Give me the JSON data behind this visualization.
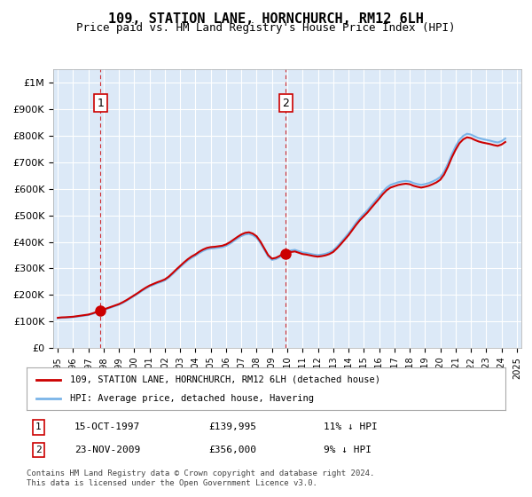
{
  "title": "109, STATION LANE, HORNCHURCH, RM12 6LH",
  "subtitle": "Price paid vs. HM Land Registry's House Price Index (HPI)",
  "background_color": "#dce9f7",
  "plot_bg_color": "#dce9f7",
  "ylabel_color": "#000000",
  "grid_color": "#ffffff",
  "hpi_color": "#7ab4e8",
  "price_color": "#cc0000",
  "ylim": [
    0,
    1050000
  ],
  "yticks": [
    0,
    100000,
    200000,
    300000,
    400000,
    500000,
    600000,
    700000,
    800000,
    900000,
    1000000
  ],
  "ytick_labels": [
    "£0",
    "£100K",
    "£200K",
    "£300K",
    "£400K",
    "£500K",
    "£600K",
    "£700K",
    "£800K",
    "£900K",
    "£1M"
  ],
  "x_start_year": 1995,
  "x_end_year": 2025,
  "xtick_years": [
    1995,
    1996,
    1997,
    1998,
    1999,
    2000,
    2001,
    2002,
    2003,
    2004,
    2005,
    2006,
    2007,
    2008,
    2009,
    2010,
    2011,
    2012,
    2013,
    2014,
    2015,
    2016,
    2017,
    2018,
    2019,
    2020,
    2021,
    2022,
    2023,
    2024,
    2025
  ],
  "hpi_years": [
    1995.0,
    1995.25,
    1995.5,
    1995.75,
    1996.0,
    1996.25,
    1996.5,
    1996.75,
    1997.0,
    1997.25,
    1997.5,
    1997.75,
    1998.0,
    1998.25,
    1998.5,
    1998.75,
    1999.0,
    1999.25,
    1999.5,
    1999.75,
    2000.0,
    2000.25,
    2000.5,
    2000.75,
    2001.0,
    2001.25,
    2001.5,
    2001.75,
    2002.0,
    2002.25,
    2002.5,
    2002.75,
    2003.0,
    2003.25,
    2003.5,
    2003.75,
    2004.0,
    2004.25,
    2004.5,
    2004.75,
    2005.0,
    2005.25,
    2005.5,
    2005.75,
    2006.0,
    2006.25,
    2006.5,
    2006.75,
    2007.0,
    2007.25,
    2007.5,
    2007.75,
    2008.0,
    2008.25,
    2008.5,
    2008.75,
    2009.0,
    2009.25,
    2009.5,
    2009.75,
    2010.0,
    2010.25,
    2010.5,
    2010.75,
    2011.0,
    2011.25,
    2011.5,
    2011.75,
    2012.0,
    2012.25,
    2012.5,
    2012.75,
    2013.0,
    2013.25,
    2013.5,
    2013.75,
    2014.0,
    2014.25,
    2014.5,
    2014.75,
    2015.0,
    2015.25,
    2015.5,
    2015.75,
    2016.0,
    2016.25,
    2016.5,
    2016.75,
    2017.0,
    2017.25,
    2017.5,
    2017.75,
    2018.0,
    2018.25,
    2018.5,
    2018.75,
    2019.0,
    2019.25,
    2019.5,
    2019.75,
    2020.0,
    2020.25,
    2020.5,
    2020.75,
    2021.0,
    2021.25,
    2021.5,
    2021.75,
    2022.0,
    2022.25,
    2022.5,
    2022.75,
    2023.0,
    2023.25,
    2023.5,
    2023.75,
    2024.0,
    2024.25
  ],
  "hpi_values": [
    112000,
    113500,
    114000,
    115000,
    116000,
    118000,
    120000,
    122000,
    124000,
    128000,
    133000,
    138000,
    143000,
    148000,
    153000,
    158000,
    163000,
    170000,
    178000,
    187000,
    196000,
    205000,
    215000,
    224000,
    232000,
    238000,
    244000,
    249000,
    255000,
    265000,
    278000,
    292000,
    305000,
    318000,
    330000,
    340000,
    348000,
    358000,
    366000,
    372000,
    375000,
    376000,
    378000,
    380000,
    385000,
    393000,
    403000,
    413000,
    422000,
    428000,
    430000,
    425000,
    415000,
    395000,
    370000,
    345000,
    332000,
    335000,
    342000,
    352000,
    362000,
    368000,
    370000,
    365000,
    360000,
    358000,
    355000,
    352000,
    350000,
    352000,
    355000,
    360000,
    368000,
    382000,
    398000,
    415000,
    432000,
    452000,
    472000,
    490000,
    505000,
    520000,
    538000,
    555000,
    572000,
    590000,
    605000,
    615000,
    620000,
    625000,
    628000,
    630000,
    628000,
    622000,
    618000,
    615000,
    618000,
    622000,
    628000,
    635000,
    645000,
    665000,
    695000,
    730000,
    760000,
    785000,
    800000,
    808000,
    805000,
    798000,
    792000,
    788000,
    785000,
    782000,
    778000,
    775000,
    780000,
    790000
  ],
  "sale1_year": 1997.79,
  "sale1_price": 139995,
  "sale2_year": 2009.9,
  "sale2_price": 356000,
  "marker_color": "#cc0000",
  "marker_size": 8,
  "vline_color": "#cc0000",
  "legend_line1": "109, STATION LANE, HORNCHURCH, RM12 6LH (detached house)",
  "legend_line2": "HPI: Average price, detached house, Havering",
  "table_row1": [
    "1",
    "15-OCT-1997",
    "£139,995",
    "11% ↓ HPI"
  ],
  "table_row2": [
    "2",
    "23-NOV-2009",
    "£356,000",
    "9% ↓ HPI"
  ],
  "footer": "Contains HM Land Registry data © Crown copyright and database right 2024.\nThis data is licensed under the Open Government Licence v3.0."
}
